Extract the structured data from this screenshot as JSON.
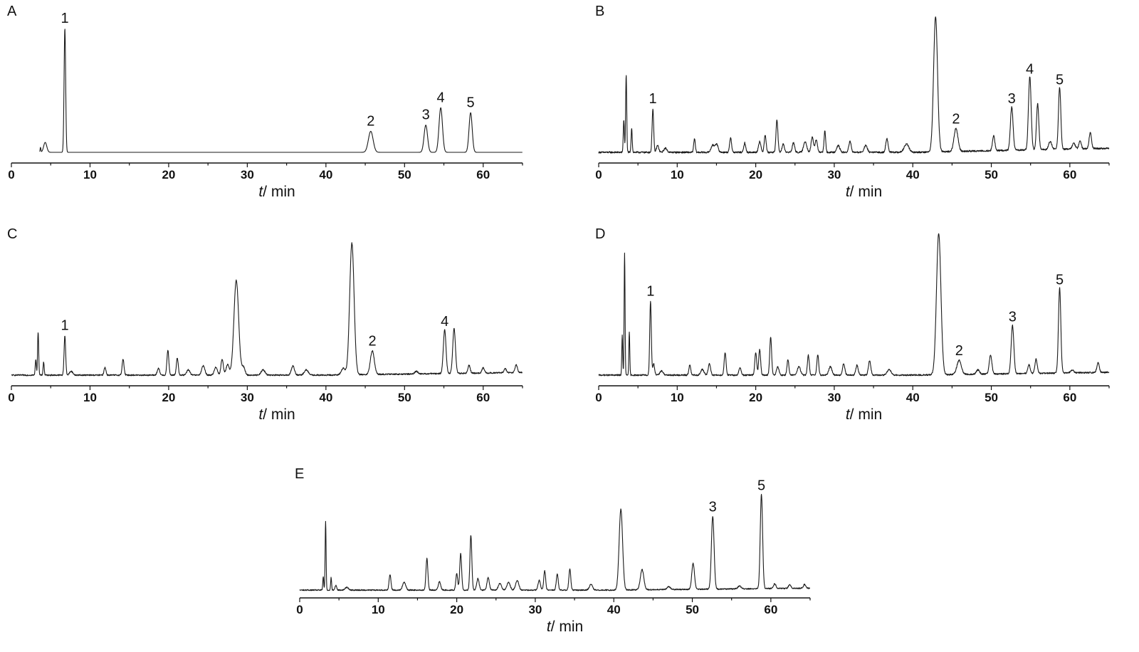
{
  "figure": {
    "panels": [
      "A",
      "B",
      "C",
      "D",
      "E"
    ]
  },
  "chart_data": [
    {
      "id": "A",
      "type": "line",
      "panel_label": "A",
      "xlabel_var": "t",
      "xlabel_unit": "/ min",
      "xlim": [
        0,
        65
      ],
      "xticks": [
        0,
        10,
        20,
        30,
        40,
        50,
        60
      ],
      "baseline_start": 3.6,
      "baseline_end": 65,
      "noise": 0,
      "tail_rise": 0,
      "peaks": [
        {
          "t": 3.7,
          "h": 0.04,
          "w": 0.05
        },
        {
          "t": 4.3,
          "h": 0.08,
          "w": 0.2
        },
        {
          "t": 6.8,
          "h": 1.0,
          "w": 0.1
        },
        {
          "t": 45.7,
          "h": 0.17,
          "w": 0.3
        },
        {
          "t": 52.7,
          "h": 0.22,
          "w": 0.22
        },
        {
          "t": 54.6,
          "h": 0.36,
          "w": 0.22
        },
        {
          "t": 58.4,
          "h": 0.32,
          "w": 0.2
        }
      ],
      "labels": [
        {
          "text": "1",
          "t": 6.8,
          "h": 1.0
        },
        {
          "text": "2",
          "t": 45.7,
          "h": 0.17
        },
        {
          "text": "3",
          "t": 52.7,
          "h": 0.22
        },
        {
          "text": "4",
          "t": 54.6,
          "h": 0.36
        },
        {
          "text": "5",
          "t": 58.4,
          "h": 0.32
        }
      ]
    },
    {
      "id": "B",
      "type": "line",
      "panel_label": "B",
      "xlabel_var": "t",
      "xlabel_unit": "/ min",
      "xlim": [
        0,
        65
      ],
      "xticks": [
        0,
        10,
        20,
        30,
        40,
        50,
        60
      ],
      "baseline_start": 0,
      "baseline_end": 65,
      "noise": 0.012,
      "tail_rise": 0.03,
      "peaks": [
        {
          "t": 3.2,
          "h": 0.24,
          "w": 0.07
        },
        {
          "t": 3.5,
          "h": 0.57,
          "w": 0.07
        },
        {
          "t": 4.2,
          "h": 0.18,
          "w": 0.07
        },
        {
          "t": 6.9,
          "h": 0.32,
          "w": 0.1
        },
        {
          "t": 7.5,
          "h": 0.05,
          "w": 0.15
        },
        {
          "t": 8.5,
          "h": 0.03,
          "w": 0.2
        },
        {
          "t": 12.2,
          "h": 0.1,
          "w": 0.1
        },
        {
          "t": 14.5,
          "h": 0.05,
          "w": 0.2
        },
        {
          "t": 15.0,
          "h": 0.06,
          "w": 0.2
        },
        {
          "t": 16.8,
          "h": 0.11,
          "w": 0.12
        },
        {
          "t": 18.6,
          "h": 0.07,
          "w": 0.12
        },
        {
          "t": 20.5,
          "h": 0.08,
          "w": 0.15
        },
        {
          "t": 21.2,
          "h": 0.13,
          "w": 0.12
        },
        {
          "t": 22.7,
          "h": 0.24,
          "w": 0.12
        },
        {
          "t": 23.5,
          "h": 0.06,
          "w": 0.15
        },
        {
          "t": 24.8,
          "h": 0.07,
          "w": 0.15
        },
        {
          "t": 26.3,
          "h": 0.08,
          "w": 0.2
        },
        {
          "t": 27.2,
          "h": 0.11,
          "w": 0.15
        },
        {
          "t": 27.7,
          "h": 0.09,
          "w": 0.15
        },
        {
          "t": 28.8,
          "h": 0.16,
          "w": 0.1
        },
        {
          "t": 30.5,
          "h": 0.05,
          "w": 0.2
        },
        {
          "t": 32.0,
          "h": 0.08,
          "w": 0.15
        },
        {
          "t": 34.0,
          "h": 0.05,
          "w": 0.2
        },
        {
          "t": 36.7,
          "h": 0.1,
          "w": 0.15
        },
        {
          "t": 39.2,
          "h": 0.06,
          "w": 0.3
        },
        {
          "t": 42.9,
          "h": 1.0,
          "w": 0.25
        },
        {
          "t": 45.5,
          "h": 0.17,
          "w": 0.25
        },
        {
          "t": 50.3,
          "h": 0.11,
          "w": 0.15
        },
        {
          "t": 52.6,
          "h": 0.32,
          "w": 0.17
        },
        {
          "t": 54.9,
          "h": 0.54,
          "w": 0.17
        },
        {
          "t": 55.9,
          "h": 0.34,
          "w": 0.15
        },
        {
          "t": 57.5,
          "h": 0.06,
          "w": 0.2
        },
        {
          "t": 58.7,
          "h": 0.46,
          "w": 0.15
        },
        {
          "t": 60.5,
          "h": 0.04,
          "w": 0.2
        },
        {
          "t": 61.3,
          "h": 0.06,
          "w": 0.15
        },
        {
          "t": 62.6,
          "h": 0.12,
          "w": 0.15
        }
      ],
      "labels": [
        {
          "text": "1",
          "t": 6.9,
          "h": 0.32
        },
        {
          "text": "2",
          "t": 45.5,
          "h": 0.17
        },
        {
          "text": "3",
          "t": 52.6,
          "h": 0.32
        },
        {
          "text": "4",
          "t": 54.9,
          "h": 0.54
        },
        {
          "text": "5",
          "t": 58.7,
          "h": 0.46
        }
      ]
    },
    {
      "id": "C",
      "type": "line",
      "panel_label": "C",
      "xlabel_var": "t",
      "xlabel_unit": "/ min",
      "xlim": [
        0,
        65
      ],
      "xticks": [
        0,
        10,
        20,
        30,
        40,
        50,
        60
      ],
      "baseline_start": 0,
      "baseline_end": 65,
      "noise": 0.01,
      "tail_rise": 0.02,
      "peaks": [
        {
          "t": 3.1,
          "h": 0.12,
          "w": 0.07
        },
        {
          "t": 3.4,
          "h": 0.33,
          "w": 0.07
        },
        {
          "t": 4.1,
          "h": 0.1,
          "w": 0.07
        },
        {
          "t": 6.8,
          "h": 0.3,
          "w": 0.1
        },
        {
          "t": 7.6,
          "h": 0.03,
          "w": 0.2
        },
        {
          "t": 11.9,
          "h": 0.06,
          "w": 0.12
        },
        {
          "t": 14.2,
          "h": 0.12,
          "w": 0.12
        },
        {
          "t": 18.7,
          "h": 0.05,
          "w": 0.15
        },
        {
          "t": 19.9,
          "h": 0.19,
          "w": 0.12
        },
        {
          "t": 21.1,
          "h": 0.13,
          "w": 0.12
        },
        {
          "t": 22.5,
          "h": 0.04,
          "w": 0.2
        },
        {
          "t": 24.4,
          "h": 0.07,
          "w": 0.2
        },
        {
          "t": 26.0,
          "h": 0.06,
          "w": 0.2
        },
        {
          "t": 26.8,
          "h": 0.12,
          "w": 0.15
        },
        {
          "t": 27.5,
          "h": 0.08,
          "w": 0.2
        },
        {
          "t": 28.6,
          "h": 0.72,
          "w": 0.3
        },
        {
          "t": 29.5,
          "h": 0.06,
          "w": 0.2
        },
        {
          "t": 32.0,
          "h": 0.04,
          "w": 0.25
        },
        {
          "t": 35.8,
          "h": 0.07,
          "w": 0.2
        },
        {
          "t": 37.5,
          "h": 0.04,
          "w": 0.25
        },
        {
          "t": 42.2,
          "h": 0.05,
          "w": 0.25
        },
        {
          "t": 43.3,
          "h": 1.0,
          "w": 0.28
        },
        {
          "t": 45.9,
          "h": 0.18,
          "w": 0.25
        },
        {
          "t": 51.5,
          "h": 0.02,
          "w": 0.2
        },
        {
          "t": 55.1,
          "h": 0.33,
          "w": 0.17
        },
        {
          "t": 56.3,
          "h": 0.34,
          "w": 0.17
        },
        {
          "t": 58.2,
          "h": 0.06,
          "w": 0.15
        },
        {
          "t": 60.0,
          "h": 0.04,
          "w": 0.15
        },
        {
          "t": 62.8,
          "h": 0.03,
          "w": 0.15
        },
        {
          "t": 64.2,
          "h": 0.06,
          "w": 0.15
        }
      ],
      "labels": [
        {
          "text": "1",
          "t": 6.8,
          "h": 0.3
        },
        {
          "text": "2",
          "t": 45.9,
          "h": 0.18
        },
        {
          "text": "4",
          "t": 55.1,
          "h": 0.33
        }
      ]
    },
    {
      "id": "D",
      "type": "line",
      "panel_label": "D",
      "xlabel_var": "t",
      "xlabel_unit": "/ min",
      "xlim": [
        0,
        65
      ],
      "xticks": [
        0,
        10,
        20,
        30,
        40,
        50,
        60
      ],
      "baseline_start": 0,
      "baseline_end": 65,
      "noise": 0.01,
      "tail_rise": 0.02,
      "peaks": [
        {
          "t": 3.0,
          "h": 0.28,
          "w": 0.06
        },
        {
          "t": 3.3,
          "h": 0.86,
          "w": 0.06
        },
        {
          "t": 3.9,
          "h": 0.3,
          "w": 0.06
        },
        {
          "t": 6.6,
          "h": 0.52,
          "w": 0.1
        },
        {
          "t": 7.0,
          "h": 0.08,
          "w": 0.12
        },
        {
          "t": 8.0,
          "h": 0.03,
          "w": 0.2
        },
        {
          "t": 11.6,
          "h": 0.07,
          "w": 0.12
        },
        {
          "t": 13.2,
          "h": 0.04,
          "w": 0.2
        },
        {
          "t": 14.1,
          "h": 0.08,
          "w": 0.15
        },
        {
          "t": 16.1,
          "h": 0.16,
          "w": 0.12
        },
        {
          "t": 18.0,
          "h": 0.05,
          "w": 0.15
        },
        {
          "t": 20.0,
          "h": 0.16,
          "w": 0.12
        },
        {
          "t": 20.5,
          "h": 0.18,
          "w": 0.12
        },
        {
          "t": 21.9,
          "h": 0.27,
          "w": 0.12
        },
        {
          "t": 22.8,
          "h": 0.06,
          "w": 0.15
        },
        {
          "t": 24.1,
          "h": 0.11,
          "w": 0.12
        },
        {
          "t": 25.5,
          "h": 0.06,
          "w": 0.2
        },
        {
          "t": 26.7,
          "h": 0.14,
          "w": 0.12
        },
        {
          "t": 27.9,
          "h": 0.14,
          "w": 0.12
        },
        {
          "t": 29.5,
          "h": 0.06,
          "w": 0.2
        },
        {
          "t": 31.2,
          "h": 0.08,
          "w": 0.15
        },
        {
          "t": 32.9,
          "h": 0.07,
          "w": 0.15
        },
        {
          "t": 34.5,
          "h": 0.1,
          "w": 0.15
        },
        {
          "t": 37.0,
          "h": 0.04,
          "w": 0.25
        },
        {
          "t": 43.3,
          "h": 1.0,
          "w": 0.28
        },
        {
          "t": 45.9,
          "h": 0.1,
          "w": 0.28
        },
        {
          "t": 48.3,
          "h": 0.03,
          "w": 0.2
        },
        {
          "t": 49.9,
          "h": 0.13,
          "w": 0.17
        },
        {
          "t": 52.7,
          "h": 0.34,
          "w": 0.17
        },
        {
          "t": 54.8,
          "h": 0.06,
          "w": 0.15
        },
        {
          "t": 55.7,
          "h": 0.1,
          "w": 0.15
        },
        {
          "t": 58.7,
          "h": 0.6,
          "w": 0.15
        },
        {
          "t": 60.3,
          "h": 0.02,
          "w": 0.2
        },
        {
          "t": 63.6,
          "h": 0.07,
          "w": 0.15
        }
      ],
      "labels": [
        {
          "text": "1",
          "t": 6.6,
          "h": 0.52
        },
        {
          "text": "2",
          "t": 45.9,
          "h": 0.1
        },
        {
          "text": "3",
          "t": 52.7,
          "h": 0.34
        },
        {
          "text": "5",
          "t": 58.7,
          "h": 0.6
        }
      ]
    },
    {
      "id": "E",
      "type": "line",
      "panel_label": "E",
      "xlabel_var": "t",
      "xlabel_unit": "/ min",
      "xlim": [
        0,
        65
      ],
      "xticks": [
        0,
        10,
        20,
        30,
        40,
        50,
        60
      ],
      "baseline_start": 0,
      "baseline_end": 65,
      "noise": 0.012,
      "tail_rise": 0.02,
      "peaks": [
        {
          "t": 3.0,
          "h": 0.14,
          "w": 0.06
        },
        {
          "t": 3.3,
          "h": 0.72,
          "w": 0.06
        },
        {
          "t": 4.0,
          "h": 0.13,
          "w": 0.06
        },
        {
          "t": 4.6,
          "h": 0.05,
          "w": 0.1
        },
        {
          "t": 6.0,
          "h": 0.03,
          "w": 0.2
        },
        {
          "t": 11.5,
          "h": 0.16,
          "w": 0.12
        },
        {
          "t": 13.3,
          "h": 0.08,
          "w": 0.2
        },
        {
          "t": 16.2,
          "h": 0.33,
          "w": 0.12
        },
        {
          "t": 17.8,
          "h": 0.09,
          "w": 0.15
        },
        {
          "t": 20.0,
          "h": 0.17,
          "w": 0.12
        },
        {
          "t": 20.5,
          "h": 0.38,
          "w": 0.12
        },
        {
          "t": 21.8,
          "h": 0.57,
          "w": 0.12
        },
        {
          "t": 22.7,
          "h": 0.12,
          "w": 0.15
        },
        {
          "t": 24.0,
          "h": 0.13,
          "w": 0.15
        },
        {
          "t": 25.5,
          "h": 0.07,
          "w": 0.2
        },
        {
          "t": 26.6,
          "h": 0.08,
          "w": 0.2
        },
        {
          "t": 27.7,
          "h": 0.1,
          "w": 0.2
        },
        {
          "t": 30.5,
          "h": 0.1,
          "w": 0.15
        },
        {
          "t": 31.2,
          "h": 0.2,
          "w": 0.12
        },
        {
          "t": 32.8,
          "h": 0.17,
          "w": 0.12
        },
        {
          "t": 34.4,
          "h": 0.22,
          "w": 0.12
        },
        {
          "t": 37.1,
          "h": 0.06,
          "w": 0.2
        },
        {
          "t": 40.9,
          "h": 0.84,
          "w": 0.22
        },
        {
          "t": 43.6,
          "h": 0.21,
          "w": 0.22
        },
        {
          "t": 47.0,
          "h": 0.03,
          "w": 0.2
        },
        {
          "t": 50.1,
          "h": 0.27,
          "w": 0.17
        },
        {
          "t": 52.6,
          "h": 0.76,
          "w": 0.17
        },
        {
          "t": 56.0,
          "h": 0.03,
          "w": 0.2
        },
        {
          "t": 58.8,
          "h": 0.98,
          "w": 0.15
        },
        {
          "t": 60.5,
          "h": 0.05,
          "w": 0.15
        },
        {
          "t": 62.4,
          "h": 0.04,
          "w": 0.15
        },
        {
          "t": 64.3,
          "h": 0.04,
          "w": 0.15
        }
      ],
      "labels": [
        {
          "text": "3",
          "t": 52.6,
          "h": 0.76
        },
        {
          "text": "5",
          "t": 58.8,
          "h": 0.98
        }
      ]
    }
  ]
}
